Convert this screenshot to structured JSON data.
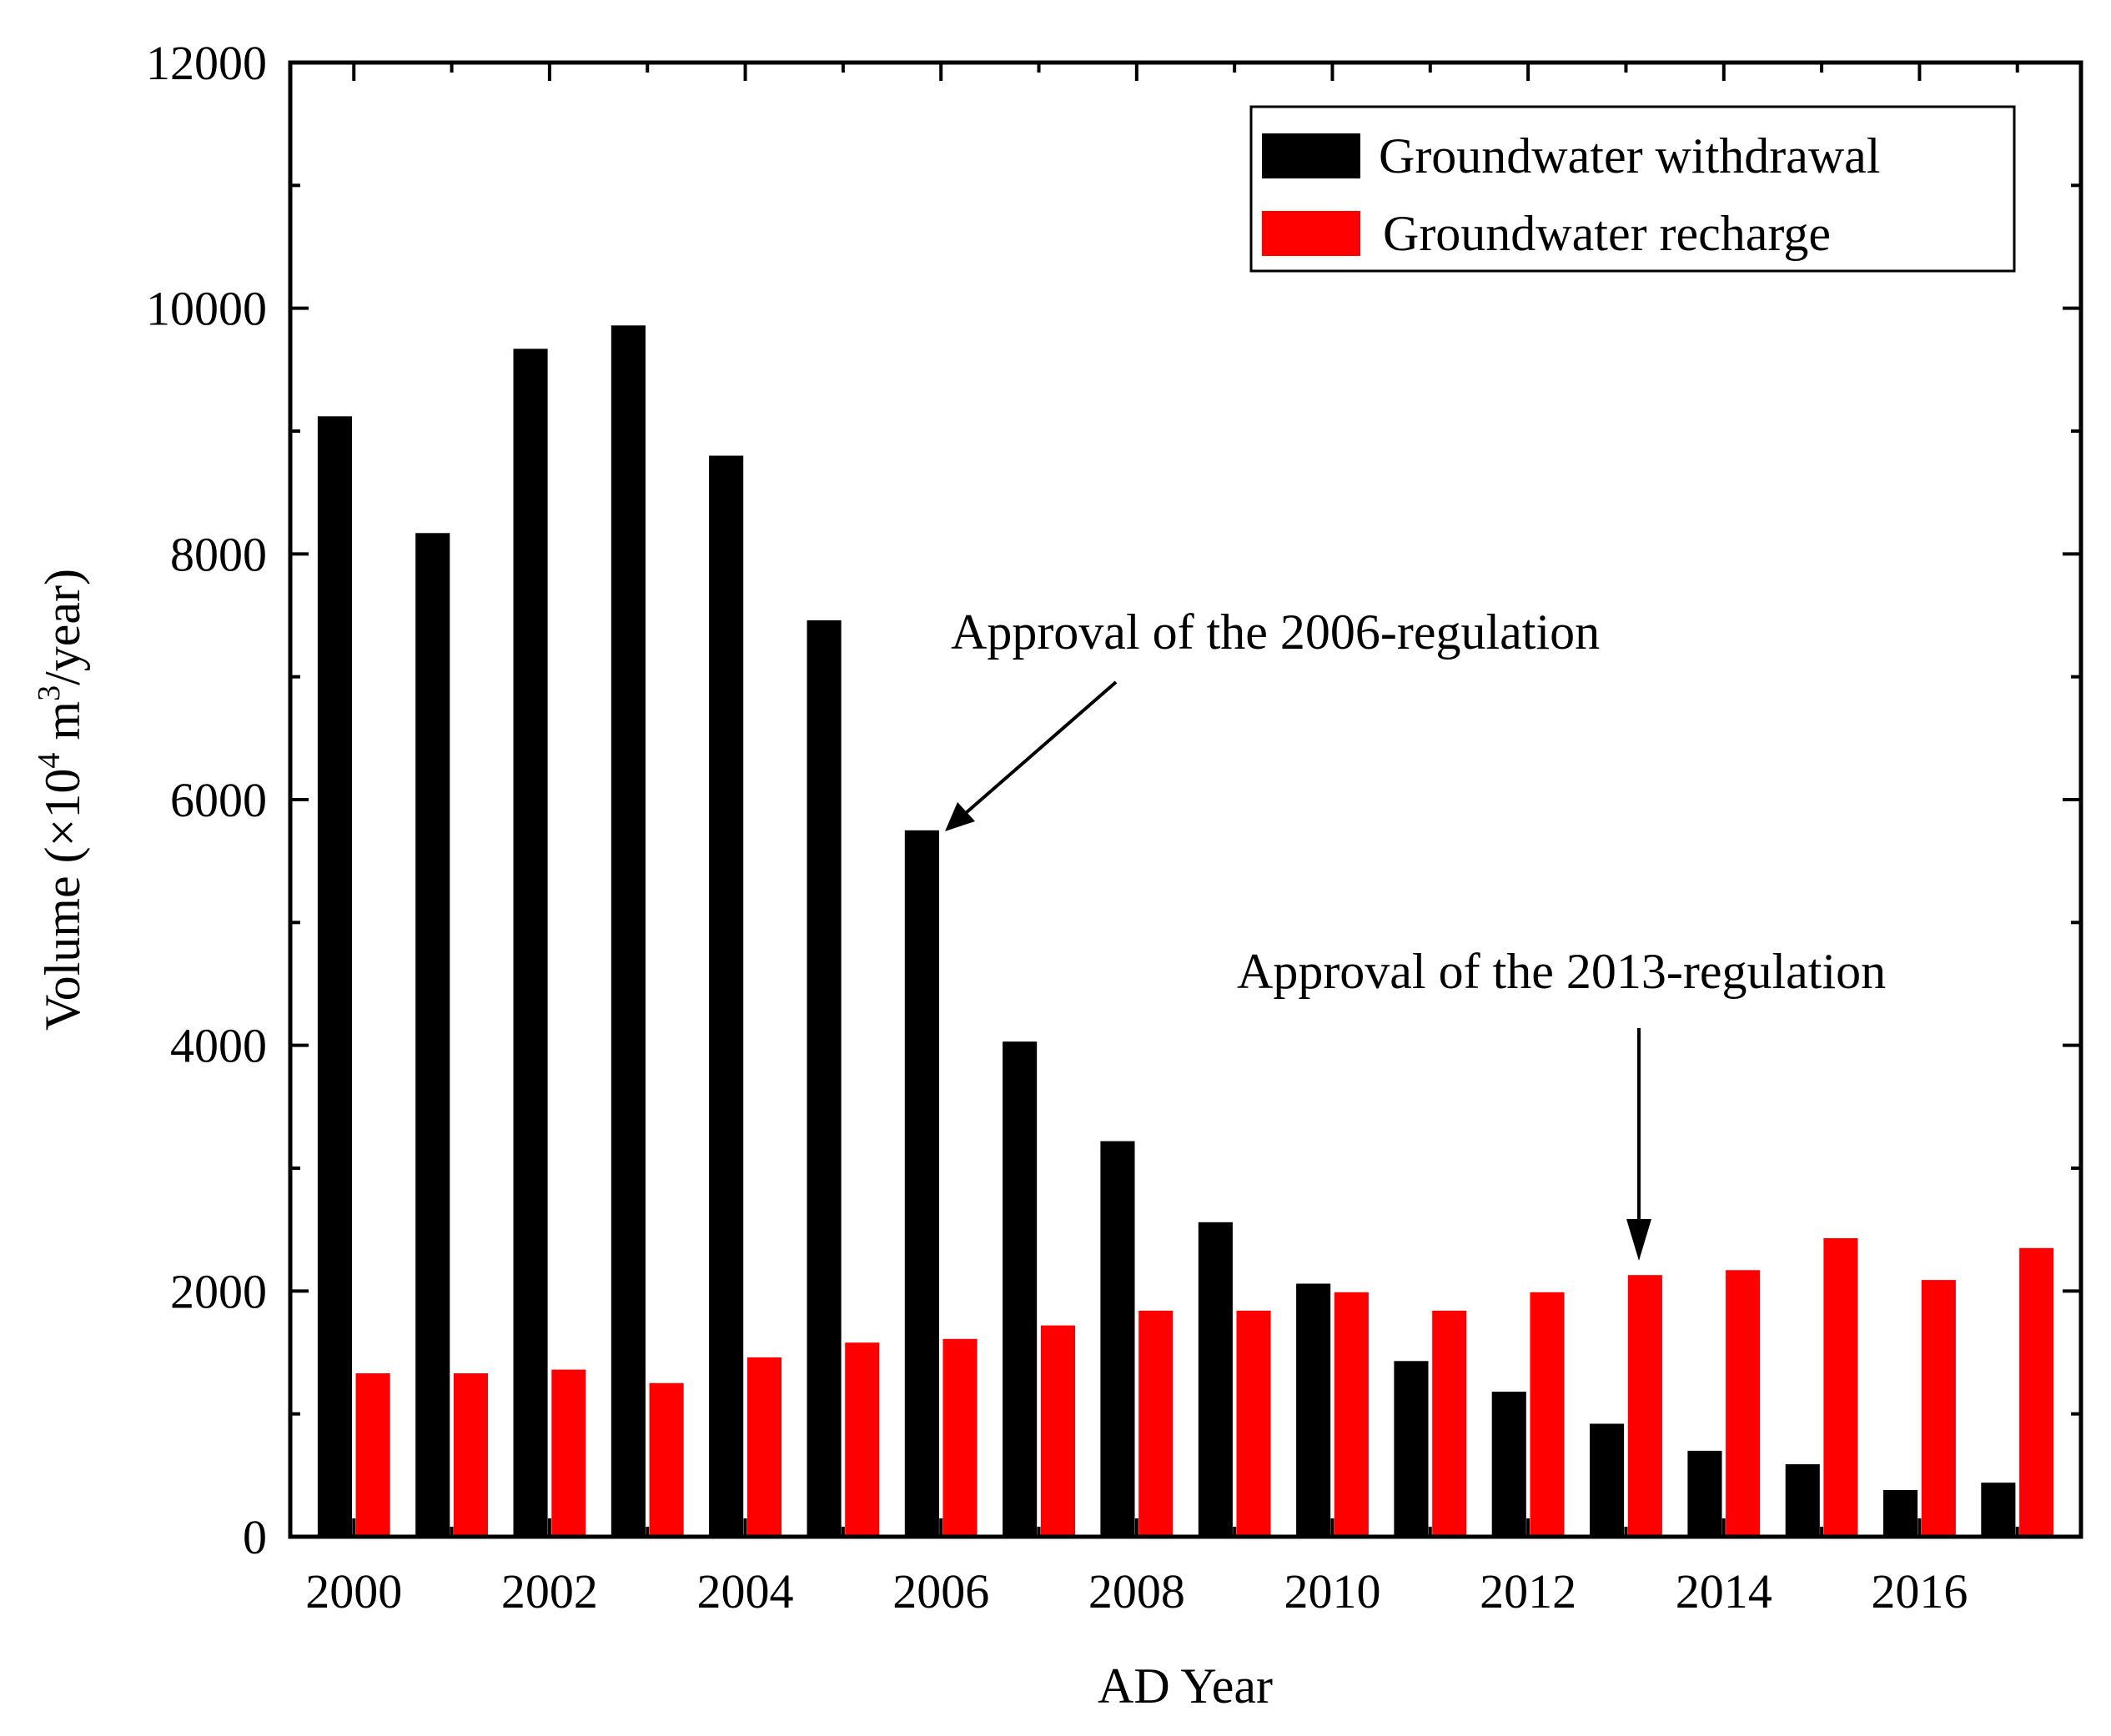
{
  "chart_data": {
    "type": "bar",
    "title": "",
    "xlabel": "AD Year",
    "ylabel_parts": {
      "prefix": "Volume (×10",
      "exp1": "4",
      "middle": " m",
      "exp2": "3",
      "suffix": "/year)"
    },
    "xlim": [
      1999.35,
      2017.65
    ],
    "ylim": [
      0,
      12000
    ],
    "y_ticks": [
      0,
      2000,
      4000,
      6000,
      8000,
      10000,
      12000
    ],
    "y_tick_labels": [
      "0",
      "2000",
      "4000",
      "6000",
      "8000",
      "10000",
      "12000"
    ],
    "x_ticks": [
      2000,
      2002,
      2004,
      2006,
      2008,
      2010,
      2012,
      2014,
      2016
    ],
    "x_tick_labels": [
      "2000",
      "2002",
      "2004",
      "2006",
      "2008",
      "2010",
      "2012",
      "2014",
      "2016"
    ],
    "categories": [
      2000,
      2001,
      2002,
      2003,
      2004,
      2005,
      2006,
      2007,
      2008,
      2009,
      2010,
      2011,
      2012,
      2013,
      2014,
      2015,
      2016,
      2017
    ],
    "series": [
      {
        "name": "Groundwater withdrawal",
        "color": "#000000",
        "values": [
          9120,
          8170,
          9670,
          9860,
          8800,
          7460,
          5750,
          4030,
          3220,
          2560,
          2060,
          1430,
          1180,
          920,
          700,
          590,
          380,
          440
        ]
      },
      {
        "name": "Groundwater recharge",
        "color": "#ff0000",
        "values": [
          1330,
          1330,
          1360,
          1250,
          1460,
          1580,
          1610,
          1720,
          1840,
          1840,
          1990,
          1840,
          1990,
          2130,
          2170,
          2430,
          2090,
          2350
        ]
      }
    ],
    "grid": false,
    "legend_position": "top-right",
    "annotations": [
      {
        "text": "Approval of the 2006-regulation",
        "target_year": 2006,
        "target_value": 5750
      },
      {
        "text": "Approval of  the 2013-regulation",
        "target_year": 2013,
        "target_value": 2350
      }
    ]
  }
}
